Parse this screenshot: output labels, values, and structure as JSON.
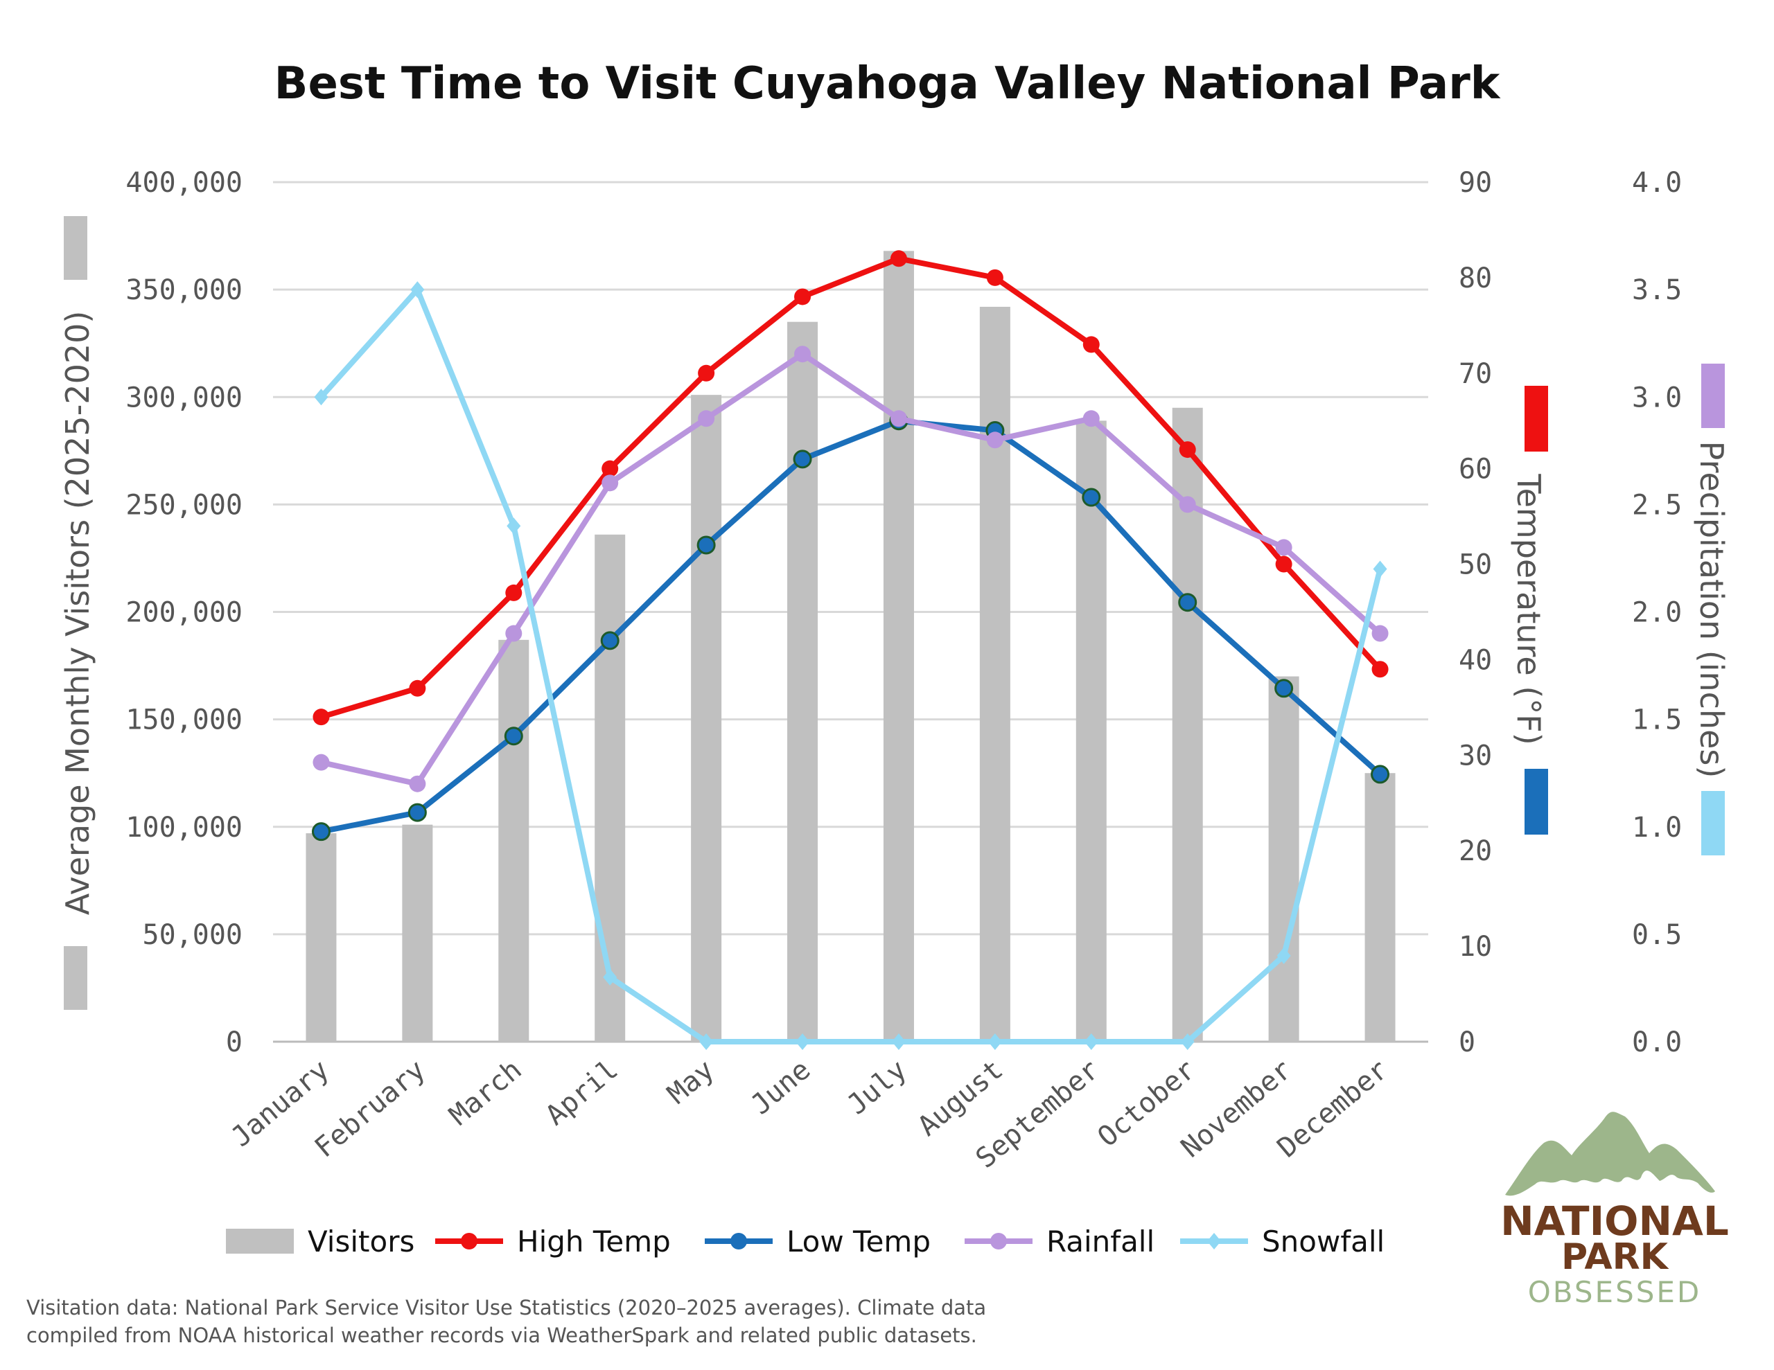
{
  "chart_data": {
    "type": "bar+line",
    "title": "Best Time to Visit Cuyahoga Valley National Park",
    "categories": [
      "January",
      "February",
      "March",
      "April",
      "May",
      "June",
      "July",
      "August",
      "September",
      "October",
      "November",
      "December"
    ],
    "y_left": {
      "label": "Average Monthly Visitors (2025-2020)",
      "range": [
        0,
        400000
      ],
      "ticks": [
        "0",
        "50,000",
        "100,000",
        "150,000",
        "200,000",
        "250,000",
        "300,000",
        "350,000",
        "400,000"
      ]
    },
    "y_right1": {
      "label": "Temperature (°F)",
      "range": [
        0,
        90
      ],
      "ticks": [
        "0",
        "10",
        "20",
        "30",
        "40",
        "50",
        "60",
        "70",
        "80",
        "90"
      ]
    },
    "y_right2": {
      "label": "Precipitation (inches)",
      "range": [
        0,
        4
      ],
      "ticks": [
        "0.0",
        "0.5",
        "1.0",
        "1.5",
        "2.0",
        "2.5",
        "3.0",
        "3.5",
        "4.0"
      ]
    },
    "grid": true,
    "legend_placement": "bottom",
    "series": [
      {
        "name": "Visitors",
        "type": "bar",
        "axis": "left",
        "color": "#c0c0c0",
        "values": [
          97000,
          101000,
          187000,
          236000,
          301000,
          335000,
          368000,
          342000,
          289000,
          295000,
          170000,
          125000
        ]
      },
      {
        "name": "High Temp",
        "type": "line",
        "axis": "temp",
        "color": "#ee1111",
        "values": [
          34,
          37,
          47,
          60,
          70,
          78,
          82,
          80,
          73,
          62,
          50,
          39
        ]
      },
      {
        "name": "Low Temp",
        "type": "line",
        "axis": "temp",
        "color": "#1b6fba",
        "values": [
          22,
          24,
          32,
          42,
          52,
          61,
          65,
          64,
          57,
          46,
          37,
          28
        ]
      },
      {
        "name": "Rainfall",
        "type": "line",
        "axis": "precip",
        "color": "#b995dd",
        "values": [
          1.3,
          1.2,
          1.9,
          2.6,
          2.9,
          3.2,
          2.9,
          2.8,
          2.9,
          2.5,
          2.3,
          1.9
        ]
      },
      {
        "name": "Snowfall",
        "type": "line",
        "axis": "precip",
        "color": "#8fd8f4",
        "values": [
          3.0,
          3.5,
          2.4,
          0.3,
          0,
          0,
          0,
          0,
          0,
          0,
          0.4,
          2.2
        ]
      }
    ]
  },
  "footnote": {
    "line1": "Visitation data: National Park Service Visitor Use Statistics (2020–2025 averages). Climate data",
    "line2": "compiled from NOAA historical weather records via WeatherSpark and related public datasets."
  },
  "logo": {
    "line1": "NATIONAL",
    "line2": "PARK",
    "line3": "OBSESSED"
  }
}
